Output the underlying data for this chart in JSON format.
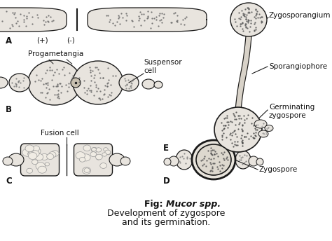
{
  "background_color": "#ffffff",
  "title_bold": "Fig: ",
  "title_italic": "Mucor spp.",
  "title_normal": " Development of zygospore\nand its germination.",
  "label_A": "A",
  "label_B": "B",
  "label_C": "C",
  "label_D": "D",
  "label_E": "E",
  "label_plus": "(+)",
  "label_minus": "(-)",
  "label_progametangia": "Progametangia",
  "label_suspensor": "Suspensor\ncell",
  "label_fusion": "Fusion cell",
  "label_zygosporangium": "Zygosporangium",
  "label_sporangiophore": "Sporangiophore",
  "label_germinating": "Germinating\nzygospore",
  "label_zygospore": "Zygospore",
  "line_color": "#1a1a1a",
  "fill_light": "#e8e4de",
  "fill_medium": "#d8d2c8",
  "text_color": "#111111"
}
